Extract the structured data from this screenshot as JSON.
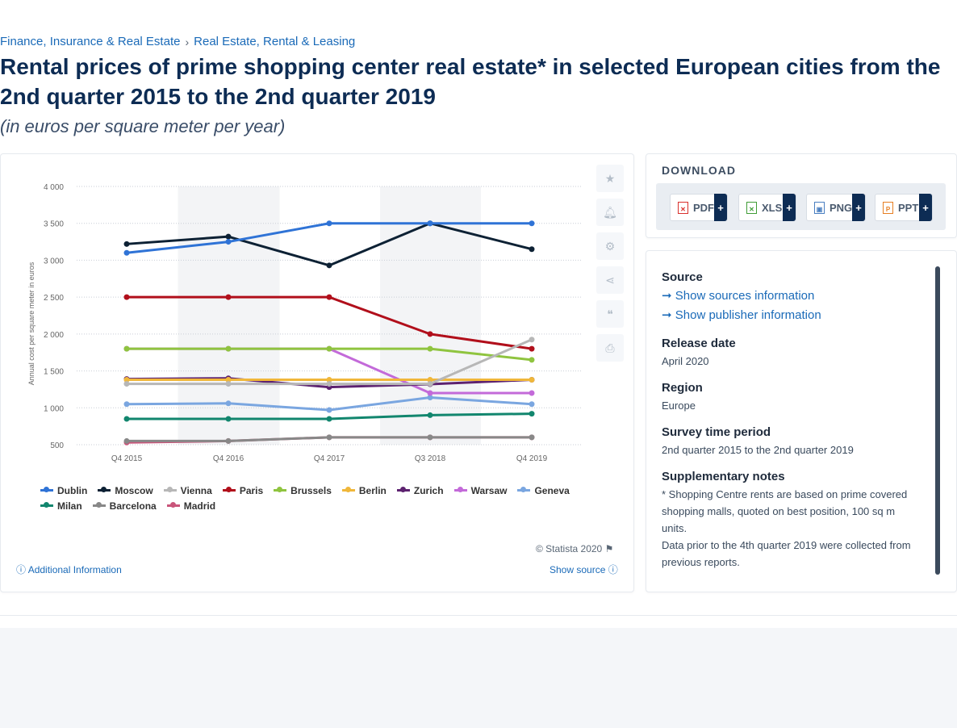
{
  "breadcrumb": [
    "Finance, Insurance & Real Estate",
    "Real Estate, Rental & Leasing"
  ],
  "breadcrumb_sep": "›",
  "title": "Rental prices of prime shopping center real estate* in selected European cities from the 2nd quarter 2015 to the 2nd quarter 2019",
  "subtitle": "(in euros per square meter per year)",
  "tools": [
    "star-icon",
    "bell-icon",
    "gear-icon",
    "share-icon",
    "quote-icon",
    "print-icon"
  ],
  "download": {
    "title": "DOWNLOAD",
    "buttons": [
      {
        "label": "PDF",
        "color": "#d9302c"
      },
      {
        "label": "XLS",
        "color": "#3f9c35"
      },
      {
        "label": "PNG",
        "color": "#4a7fc1"
      },
      {
        "label": "PPT",
        "color": "#e67e22"
      }
    ],
    "plus": "+"
  },
  "info": {
    "source_title": "Source",
    "show_sources": "Show sources information",
    "show_publisher": "Show publisher information",
    "release_title": "Release date",
    "release_value": "April 2020",
    "region_title": "Region",
    "region_value": "Europe",
    "survey_title": "Survey time period",
    "survey_value": "2nd quarter 2015 to the 2nd quarter 2019",
    "notes_title": "Supplementary notes",
    "notes_1": "* Shopping Centre rents are based on prime covered shopping malls, quoted on best position, 100 sq m units.",
    "notes_2": "Data prior to the 4th quarter 2019 were collected from previous reports."
  },
  "footer": {
    "copyright": "© Statista 2020",
    "additional_info": "Additional Information",
    "show_source": "Show source"
  },
  "chart_data": {
    "type": "line",
    "categories": [
      "Q4 2015",
      "Q4 2016",
      "Q4 2017",
      "Q3 2018",
      "Q4 2019"
    ],
    "ylabel": "Annual cost per square meter in euros",
    "ylim": [
      500,
      4000
    ],
    "yticks": [
      500,
      1000,
      1500,
      2000,
      2500,
      3000,
      3500,
      4000
    ],
    "ytick_labels": [
      "500",
      "1 000",
      "1 500",
      "2 000",
      "2 500",
      "3 000",
      "3 500",
      "4 000"
    ],
    "grid": true,
    "legend": "bottom",
    "series": [
      {
        "name": "Dublin",
        "color": "#2f73d6",
        "values": [
          3100,
          3250,
          3500,
          3500,
          3500
        ]
      },
      {
        "name": "Moscow",
        "color": "#0d2134",
        "values": [
          3220,
          3320,
          2930,
          3500,
          3150
        ]
      },
      {
        "name": "Vienna",
        "color": "#b7b7b7",
        "values": [
          1325,
          1325,
          1325,
          1325,
          1925
        ]
      },
      {
        "name": "Paris",
        "color": "#b10f1b",
        "values": [
          2500,
          2500,
          2500,
          2000,
          1800
        ]
      },
      {
        "name": "Brussels",
        "color": "#8fc43f",
        "values": [
          1800,
          1800,
          1800,
          1800,
          1650
        ]
      },
      {
        "name": "Berlin",
        "color": "#f0b73a",
        "values": [
          1380,
          1380,
          1380,
          1380,
          1380
        ]
      },
      {
        "name": "Zurich",
        "color": "#5d2270",
        "values": [
          1390,
          1400,
          1280,
          1320,
          1380
        ]
      },
      {
        "name": "Warsaw",
        "color": "#c36ad9",
        "values": [
          1800,
          1800,
          1800,
          1200,
          1200
        ]
      },
      {
        "name": "Geneva",
        "color": "#7aa6e0",
        "values": [
          1050,
          1060,
          970,
          1140,
          1050
        ]
      },
      {
        "name": "Milan",
        "color": "#12866e",
        "values": [
          850,
          850,
          850,
          900,
          920
        ]
      },
      {
        "name": "Barcelona",
        "color": "#888888",
        "values": [
          550,
          550,
          600,
          600,
          600
        ]
      },
      {
        "name": "Madrid",
        "color": "#c9557a",
        "values": [
          530,
          550,
          600,
          600,
          600
        ]
      }
    ]
  }
}
